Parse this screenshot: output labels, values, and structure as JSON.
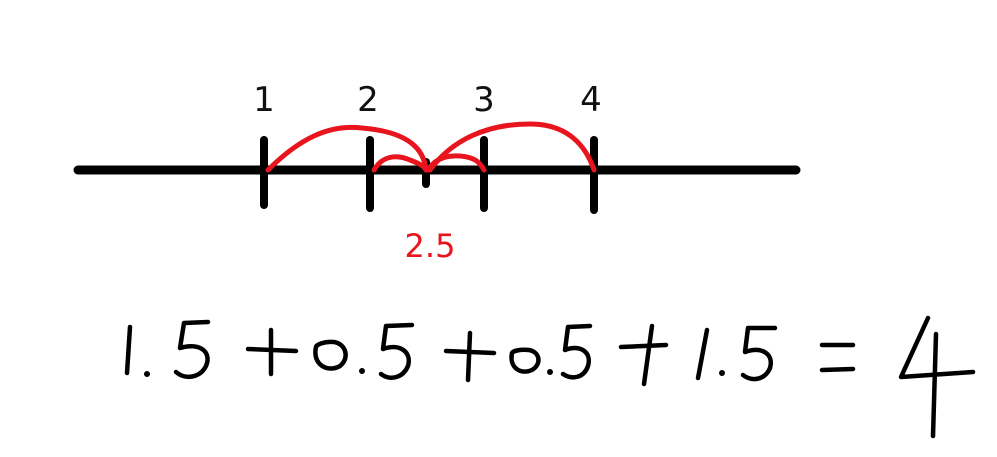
{
  "number_line": {
    "ticks": [
      {
        "value": 1,
        "label": "1"
      },
      {
        "value": 2,
        "label": "2"
      },
      {
        "value": 3,
        "label": "3"
      },
      {
        "value": 4,
        "label": "4"
      }
    ],
    "midpoint": {
      "value": 2.5,
      "label": "2.5"
    }
  },
  "jumps": [
    {
      "from": 1,
      "to": 2.5,
      "length": 1.5
    },
    {
      "from": 2,
      "to": 2.5,
      "length": 0.5
    },
    {
      "from": 2.5,
      "to": 3,
      "length": 0.5
    },
    {
      "from": 2.5,
      "to": 4,
      "length": 1.5
    }
  ],
  "equation": "1.5 + 0.5 + 0.5 + 1.5 = 4",
  "colors": {
    "line": "#000000",
    "jump": "#e8141e",
    "midpoint_label": "#e8141e"
  }
}
